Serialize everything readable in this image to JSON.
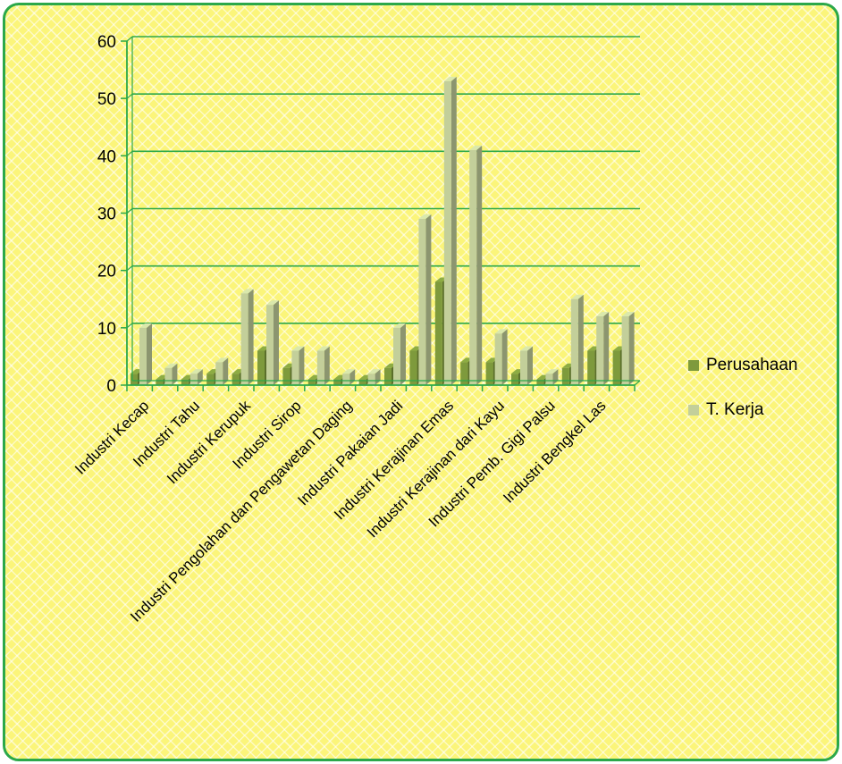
{
  "chart_data": {
    "type": "bar",
    "title": "",
    "xlabel": "",
    "ylabel": "",
    "ylim": [
      0,
      60
    ],
    "yticks": [
      0,
      10,
      20,
      30,
      40,
      50,
      60
    ],
    "grid": true,
    "legend_position": "right",
    "categories": [
      "Industri Kecap",
      "",
      "Industri Tahu",
      "",
      "Industri Kerupuk",
      "",
      "Industri Sirop",
      "",
      "Industri Pengolahan dan Pengawetan Daging",
      "",
      "Industri Pakaian Jadi",
      "",
      "Industri Kerajinan Emas",
      "",
      "Industri Kerajinan dari Kayu",
      "",
      "Industri Pemb. Gigi Palsu",
      "",
      "Industri Bengkel Las",
      ""
    ],
    "series": [
      {
        "name": "Perusahaan",
        "color": "#7e9a3c",
        "values": [
          2,
          1,
          1,
          2,
          2,
          6,
          3,
          1,
          1,
          1,
          3,
          6,
          18,
          4,
          4,
          2,
          1,
          3,
          6,
          6
        ]
      },
      {
        "name": "T. Kerja",
        "color": "#c3cf9a",
        "values": [
          10,
          3,
          2,
          4,
          16,
          14,
          6,
          6,
          2,
          2,
          10,
          29,
          53,
          41,
          9,
          6,
          2,
          15,
          12,
          12
        ]
      }
    ],
    "colors": {
      "gridline": "#2ba84a",
      "frame": "#2ba84a",
      "background": "#fbf57a"
    }
  }
}
